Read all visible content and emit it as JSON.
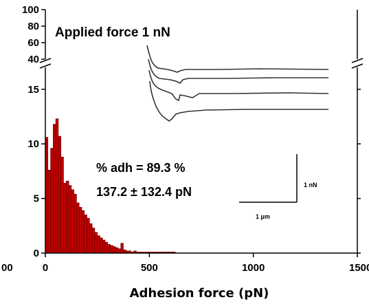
{
  "chart_data": {
    "type": "bar",
    "title": "",
    "xlabel": "Adhesion force (pN)",
    "ylabel": "",
    "xlim": [
      0,
      1500
    ],
    "ylim_lower": [
      0,
      17
    ],
    "ylim_upper": [
      40,
      100
    ],
    "axis_break": true,
    "grid": false,
    "bar_color": "#c00000",
    "bin_width": 12.5,
    "bin_start": 0,
    "values": [
      10.6,
      7.6,
      9.6,
      11.8,
      12.3,
      10.7,
      8.8,
      6.4,
      6.6,
      6.2,
      5.8,
      5.4,
      4.6,
      4.2,
      3.9,
      3.5,
      3.2,
      2.7,
      2.3,
      1.9,
      1.6,
      1.4,
      1.2,
      1.0,
      0.8,
      0.7,
      0.6,
      0.5,
      0.4,
      0.9,
      0.3,
      0.2,
      0.2,
      0.1,
      0.2,
      0.1,
      0.1,
      0.1,
      0.1,
      0.1,
      0.1,
      0.1,
      0.1,
      0.1,
      0.1,
      0.1,
      0.1,
      0.1,
      0.1,
      0.1
    ],
    "x_ticks": [
      "0",
      "500",
      "1000",
      "1500"
    ],
    "x_tick_values": [
      0,
      500,
      1000,
      1500
    ],
    "y_ticks_lower": [
      "0",
      "5",
      "10",
      "15"
    ],
    "y_tick_values_lower": [
      0,
      5,
      10,
      15
    ],
    "y_ticks_upper": [
      "40",
      "60",
      "80",
      "100"
    ],
    "y_tick_values_upper": [
      40,
      60,
      80,
      100
    ],
    "left_edge_label": "00",
    "right_edge_label": "1500",
    "annotations": {
      "applied_force": "Applied force 1 nN",
      "adhesion_pct": "% adh = 89.3 %",
      "adhesion_mean": "137.2 ± 132.4 pN",
      "scale_force": "1 nN",
      "scale_distance": "1 µm"
    }
  }
}
